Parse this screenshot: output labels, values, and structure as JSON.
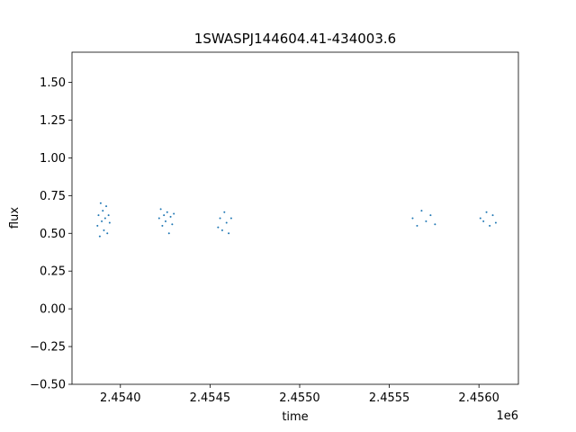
{
  "chart_data": {
    "type": "scatter",
    "title": "1SWASPJ144604.41-434003.6",
    "xlabel": "time",
    "ylabel": "flux",
    "x_offset_label": "1e6",
    "xlim": [
      2453730,
      2456220
    ],
    "ylim": [
      -0.5,
      1.7
    ],
    "x_ticks": [
      2454000,
      2454500,
      2455000,
      2455500,
      2456000
    ],
    "x_tick_labels": [
      "2.4540",
      "2.4545",
      "2.4550",
      "2.4555",
      "2.4560"
    ],
    "y_ticks": [
      -0.5,
      -0.25,
      0.0,
      0.25,
      0.5,
      0.75,
      1.0,
      1.25,
      1.5
    ],
    "y_tick_labels": [
      "−0.50",
      "−0.25",
      "0.00",
      "0.25",
      "0.50",
      "0.75",
      "1.00",
      "1.25",
      "1.50"
    ],
    "grid": false,
    "marker_color": "#1f77b4",
    "series": [
      {
        "x": [
          2453872,
          2453878,
          2453885,
          2453890,
          2453896,
          2453902,
          2453908,
          2453915,
          2453921,
          2453927,
          2453934,
          2453940,
          2454216,
          2454225,
          2454234,
          2454243,
          2454252,
          2454261,
          2454271,
          2454280,
          2454289,
          2454298,
          2454545,
          2454556,
          2454568,
          2454580,
          2454592,
          2454604,
          2454618,
          2455630,
          2455655,
          2455680,
          2455705,
          2455730,
          2455755,
          2456008,
          2456025,
          2456042,
          2456060,
          2456077,
          2456094
        ],
        "y": [
          0.55,
          0.62,
          0.48,
          0.7,
          0.58,
          0.65,
          0.52,
          0.6,
          0.68,
          0.5,
          0.62,
          0.57,
          0.6,
          0.66,
          0.55,
          0.62,
          0.58,
          0.64,
          0.5,
          0.61,
          0.56,
          0.63,
          0.54,
          0.6,
          0.52,
          0.64,
          0.57,
          0.5,
          0.6,
          0.6,
          0.55,
          0.65,
          0.58,
          0.62,
          0.56,
          0.6,
          0.58,
          0.64,
          0.55,
          0.62,
          0.57
        ]
      }
    ]
  }
}
